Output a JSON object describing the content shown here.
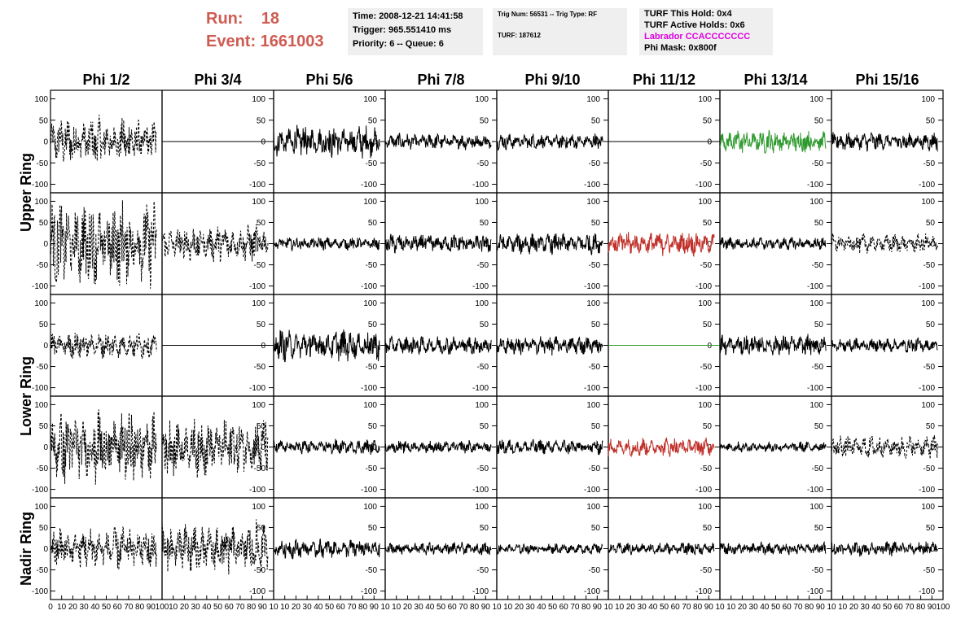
{
  "header": {
    "run_label": "Run:    18",
    "event_label": "Event: 1661003"
  },
  "info_box_1": {
    "time": "Time: 2008-12-21 14:41:58",
    "trigger": "Trigger: 965.551410 ms",
    "priority": "Priority: 6 -- Queue: 6"
  },
  "info_box_2": {
    "trig": "Trig Num: 56531 -- Trig Type: RF",
    "turf": "TURF: 187612"
  },
  "info_box_3": {
    "this_hold": "TURF This Hold: 0x4",
    "active_holds": "TURF Active Holds: 0x6",
    "labrador": "Labrador CCACCCCCCC",
    "phi_mask": "Phi Mask: 0x800f"
  },
  "colors": {
    "run_text": "#cf5c52",
    "labrador_text": "#e000e0",
    "trace_default": "#000000",
    "trace_green": "#2e9a2e",
    "trace_red": "#c0302a",
    "info_bg": "#efefef"
  },
  "chart_data": {
    "type": "line",
    "columns": [
      "Phi 1/2",
      "Phi 3/4",
      "Phi 5/6",
      "Phi 7/8",
      "Phi 9/10",
      "Phi 11/12",
      "Phi 13/14",
      "Phi 15/16"
    ],
    "ring_labels": [
      "Upper Ring",
      "Lower Ring",
      "Nadir Ring"
    ],
    "rows": 5,
    "xlim": [
      0,
      100
    ],
    "ylim": [
      -120,
      120
    ],
    "y_ticks": [
      -100,
      -50,
      0,
      50,
      100
    ],
    "x_ticks": [
      0,
      10,
      20,
      30,
      40,
      50,
      60,
      70,
      80,
      90,
      100
    ],
    "x_tick_labels": [
      [
        "0",
        "10",
        "20",
        "30",
        "40",
        "50",
        "60",
        "70",
        "80",
        "90",
        "100"
      ],
      [
        "10",
        "20",
        "30",
        "40",
        "50",
        "60",
        "70",
        "80",
        "90",
        "10"
      ],
      [
        "10",
        "20",
        "30",
        "40",
        "50",
        "60",
        "70",
        "80",
        "90",
        "10"
      ],
      [
        "10",
        "20",
        "30",
        "40",
        "50",
        "60",
        "70",
        "80",
        "90",
        "10"
      ],
      [
        "10",
        "20",
        "30",
        "40",
        "50",
        "60",
        "70",
        "80",
        "90",
        "10"
      ],
      [
        "10",
        "20",
        "30",
        "40",
        "50",
        "60",
        "70",
        "80",
        "90",
        "10"
      ],
      [
        "10",
        "20",
        "30",
        "40",
        "50",
        "60",
        "70",
        "80",
        "90",
        "10"
      ],
      [
        "10",
        "20",
        "30",
        "40",
        "50",
        "60",
        "70",
        "80",
        "90",
        "100"
      ]
    ],
    "panels": [
      [
        "dashed:45",
        "flat",
        "solid:30",
        "solid:15",
        "solid:15",
        "flat",
        "green:22",
        "solid:18"
      ],
      [
        "dashed:80",
        "dashed:35",
        "solid:12",
        "solid:18",
        "solid:20",
        "red:22",
        "solid:12",
        "dashed:18"
      ],
      [
        "dashed:25",
        "flat",
        "solid:30",
        "solid:18",
        "solid:18",
        "flatgreen",
        "solid:20",
        "solid:14"
      ],
      [
        "dashed:70",
        "dashed:55",
        "solid:14",
        "solid:12",
        "solid:14",
        "red:18",
        "solid:10",
        "dashed:22"
      ],
      [
        "dashed:40",
        "dashed:50",
        "solid:18",
        "solid:12",
        "solid:10",
        "solid:12",
        "solid:12",
        "solid:14"
      ]
    ]
  }
}
